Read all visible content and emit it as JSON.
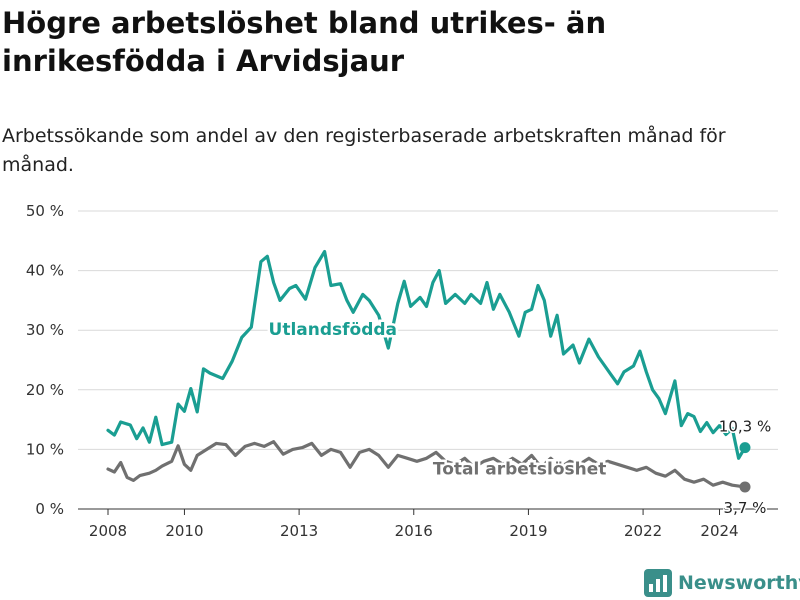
{
  "header": {
    "title": "Högre arbetslöshet bland utrikes- än inrikesfödda i Arvidsjaur",
    "subtitle": "Arbetssökande som andel av den registerbaserade arbetskraften månad för månad."
  },
  "brand": {
    "name": "Newsworthy",
    "icon": "bar-chart-logo-icon",
    "color": "#3a8f8a"
  },
  "colors": {
    "utlandsfodda": "#1a9e92",
    "total": "#707070",
    "grid": "#d9d9d9"
  },
  "chart_data": {
    "type": "line",
    "title": "Högre arbetslöshet bland utrikes- än inrikesfödda i Arvidsjaur",
    "subtitle": "Arbetssökande som andel av den registerbaserade arbetskraften månad för månad.",
    "xlabel": "",
    "ylabel": "",
    "x_range": [
      "2008-01",
      "2024-09"
    ],
    "ylim": [
      0,
      50
    ],
    "x_ticks": [
      "2008",
      "2010",
      "2013",
      "2016",
      "2019",
      "2022",
      "2024"
    ],
    "y_ticks": [
      "0 %",
      "10 %",
      "20 %",
      "30 %",
      "40 %",
      "50 %"
    ],
    "grid": "horizontal",
    "legend": "inline labels",
    "series": [
      {
        "name": "Utlandsfödda",
        "color": "#1a9e92",
        "end_label": "10,3 %",
        "points": [
          [
            "2008-01",
            13.2
          ],
          [
            "2008-03",
            12.4
          ],
          [
            "2008-05",
            14.6
          ],
          [
            "2008-08",
            14.1
          ],
          [
            "2008-10",
            11.8
          ],
          [
            "2008-12",
            13.6
          ],
          [
            "2009-02",
            11.2
          ],
          [
            "2009-04",
            15.4
          ],
          [
            "2009-06",
            10.8
          ],
          [
            "2009-09",
            11.2
          ],
          [
            "2009-11",
            17.6
          ],
          [
            "2010-01",
            16.4
          ],
          [
            "2010-03",
            20.2
          ],
          [
            "2010-05",
            16.3
          ],
          [
            "2010-07",
            23.5
          ],
          [
            "2010-09",
            22.8
          ],
          [
            "2011-01",
            21.9
          ],
          [
            "2011-04",
            24.8
          ],
          [
            "2011-07",
            28.8
          ],
          [
            "2011-10",
            30.5
          ],
          [
            "2012-01",
            41.5
          ],
          [
            "2012-03",
            42.4
          ],
          [
            "2012-05",
            38.0
          ],
          [
            "2012-07",
            35.0
          ],
          [
            "2012-10",
            37.0
          ],
          [
            "2012-12",
            37.5
          ],
          [
            "2013-03",
            35.2
          ],
          [
            "2013-06",
            40.5
          ],
          [
            "2013-09",
            43.2
          ],
          [
            "2013-11",
            37.5
          ],
          [
            "2014-02",
            37.8
          ],
          [
            "2014-04",
            35.0
          ],
          [
            "2014-06",
            33.0
          ],
          [
            "2014-09",
            36.0
          ],
          [
            "2014-11",
            35.0
          ],
          [
            "2015-02",
            32.5
          ],
          [
            "2015-05",
            27.0
          ],
          [
            "2015-08",
            34.5
          ],
          [
            "2015-10",
            38.2
          ],
          [
            "2015-12",
            34.0
          ],
          [
            "2016-03",
            35.5
          ],
          [
            "2016-05",
            34.0
          ],
          [
            "2016-07",
            38.0
          ],
          [
            "2016-09",
            40.0
          ],
          [
            "2016-11",
            34.5
          ],
          [
            "2017-02",
            36.0
          ],
          [
            "2017-05",
            34.5
          ],
          [
            "2017-07",
            36.0
          ],
          [
            "2017-10",
            34.5
          ],
          [
            "2017-12",
            38.0
          ],
          [
            "2018-02",
            33.5
          ],
          [
            "2018-04",
            36.0
          ],
          [
            "2018-07",
            33.0
          ],
          [
            "2018-10",
            29.0
          ],
          [
            "2018-12",
            33.0
          ],
          [
            "2019-02",
            33.5
          ],
          [
            "2019-04",
            37.5
          ],
          [
            "2019-06",
            35.0
          ],
          [
            "2019-08",
            29.0
          ],
          [
            "2019-10",
            32.5
          ],
          [
            "2019-12",
            26.0
          ],
          [
            "2020-03",
            27.5
          ],
          [
            "2020-05",
            24.5
          ],
          [
            "2020-08",
            28.5
          ],
          [
            "2020-11",
            25.5
          ],
          [
            "2021-01",
            24.0
          ],
          [
            "2021-03",
            22.5
          ],
          [
            "2021-05",
            21.0
          ],
          [
            "2021-07",
            23.0
          ],
          [
            "2021-10",
            24.0
          ],
          [
            "2021-12",
            26.5
          ],
          [
            "2022-02",
            23.0
          ],
          [
            "2022-04",
            20.0
          ],
          [
            "2022-06",
            18.5
          ],
          [
            "2022-08",
            16.0
          ],
          [
            "2022-11",
            21.5
          ],
          [
            "2023-01",
            14.0
          ],
          [
            "2023-03",
            16.0
          ],
          [
            "2023-05",
            15.5
          ],
          [
            "2023-07",
            13.0
          ],
          [
            "2023-09",
            14.5
          ],
          [
            "2023-11",
            12.8
          ],
          [
            "2024-01",
            14.0
          ],
          [
            "2024-03",
            12.5
          ],
          [
            "2024-05",
            13.5
          ],
          [
            "2024-07",
            8.5
          ],
          [
            "2024-09",
            10.3
          ]
        ]
      },
      {
        "name": "Total arbetslöshet",
        "color": "#707070",
        "end_label": "3,7 %",
        "points": [
          [
            "2008-01",
            6.7
          ],
          [
            "2008-03",
            6.2
          ],
          [
            "2008-05",
            7.8
          ],
          [
            "2008-07",
            5.3
          ],
          [
            "2008-09",
            4.8
          ],
          [
            "2008-11",
            5.6
          ],
          [
            "2009-02",
            6.0
          ],
          [
            "2009-04",
            6.5
          ],
          [
            "2009-06",
            7.2
          ],
          [
            "2009-09",
            8.0
          ],
          [
            "2009-11",
            10.6
          ],
          [
            "2010-01",
            7.5
          ],
          [
            "2010-03",
            6.5
          ],
          [
            "2010-05",
            9.0
          ],
          [
            "2010-08",
            10.0
          ],
          [
            "2010-11",
            11.0
          ],
          [
            "2011-02",
            10.8
          ],
          [
            "2011-05",
            9.0
          ],
          [
            "2011-08",
            10.5
          ],
          [
            "2011-11",
            11.0
          ],
          [
            "2012-02",
            10.5
          ],
          [
            "2012-05",
            11.3
          ],
          [
            "2012-08",
            9.2
          ],
          [
            "2012-11",
            10.0
          ],
          [
            "2013-02",
            10.3
          ],
          [
            "2013-05",
            11.0
          ],
          [
            "2013-08",
            9.0
          ],
          [
            "2013-11",
            10.0
          ],
          [
            "2014-02",
            9.5
          ],
          [
            "2014-05",
            7.0
          ],
          [
            "2014-08",
            9.5
          ],
          [
            "2014-11",
            10.0
          ],
          [
            "2015-02",
            9.0
          ],
          [
            "2015-05",
            7.0
          ],
          [
            "2015-08",
            9.0
          ],
          [
            "2015-11",
            8.5
          ],
          [
            "2016-02",
            8.0
          ],
          [
            "2016-05",
            8.5
          ],
          [
            "2016-08",
            9.5
          ],
          [
            "2016-11",
            8.0
          ],
          [
            "2017-02",
            7.5
          ],
          [
            "2017-05",
            8.5
          ],
          [
            "2017-08",
            7.0
          ],
          [
            "2017-11",
            8.0
          ],
          [
            "2018-02",
            8.5
          ],
          [
            "2018-05",
            7.5
          ],
          [
            "2018-08",
            8.5
          ],
          [
            "2018-11",
            7.5
          ],
          [
            "2019-02",
            9.0
          ],
          [
            "2019-05",
            7.0
          ],
          [
            "2019-08",
            8.5
          ],
          [
            "2019-11",
            7.0
          ],
          [
            "2020-02",
            8.0
          ],
          [
            "2020-05",
            7.5
          ],
          [
            "2020-08",
            8.5
          ],
          [
            "2020-11",
            7.5
          ],
          [
            "2021-02",
            8.0
          ],
          [
            "2021-05",
            7.5
          ],
          [
            "2021-08",
            7.0
          ],
          [
            "2021-11",
            6.5
          ],
          [
            "2022-02",
            7.0
          ],
          [
            "2022-05",
            6.0
          ],
          [
            "2022-08",
            5.5
          ],
          [
            "2022-11",
            6.5
          ],
          [
            "2023-02",
            5.0
          ],
          [
            "2023-05",
            4.5
          ],
          [
            "2023-08",
            5.0
          ],
          [
            "2023-11",
            4.0
          ],
          [
            "2024-02",
            4.5
          ],
          [
            "2024-05",
            4.0
          ],
          [
            "2024-09",
            3.7
          ]
        ]
      }
    ]
  }
}
